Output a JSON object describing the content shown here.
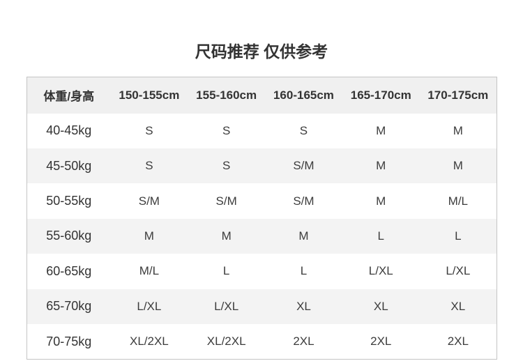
{
  "page": {
    "title": "尺码推荐 仅供参考"
  },
  "colors": {
    "page_bg": "#ffffff",
    "header_bg": "#f0f0f0",
    "stripe_bg": "#f3f3f3",
    "table_border": "#c4c4c4",
    "text": "#333333"
  },
  "chart_data": {
    "type": "table",
    "title": "尺码推荐 仅供参考",
    "columns": [
      "体重/身高",
      "150-155cm",
      "155-160cm",
      "160-165cm",
      "165-170cm",
      "170-175cm"
    ],
    "rows": [
      {
        "label": "40-45kg",
        "values": [
          "S",
          "S",
          "S",
          "M",
          "M"
        ]
      },
      {
        "label": "45-50kg",
        "values": [
          "S",
          "S",
          "S/M",
          "M",
          "M"
        ]
      },
      {
        "label": "50-55kg",
        "values": [
          "S/M",
          "S/M",
          "S/M",
          "M",
          "M/L"
        ]
      },
      {
        "label": "55-60kg",
        "values": [
          "M",
          "M",
          "M",
          "L",
          "L"
        ]
      },
      {
        "label": "60-65kg",
        "values": [
          "M/L",
          "L",
          "L",
          "L/XL",
          "L/XL"
        ]
      },
      {
        "label": "65-70kg",
        "values": [
          "L/XL",
          "L/XL",
          "XL",
          "XL",
          "XL"
        ]
      },
      {
        "label": "70-75kg",
        "values": [
          "XL/2XL",
          "XL/2XL",
          "2XL",
          "2XL",
          "2XL"
        ]
      }
    ],
    "layout": {
      "header_striped": true,
      "zebra_rows": "even",
      "grid": "outer-border-only"
    }
  }
}
